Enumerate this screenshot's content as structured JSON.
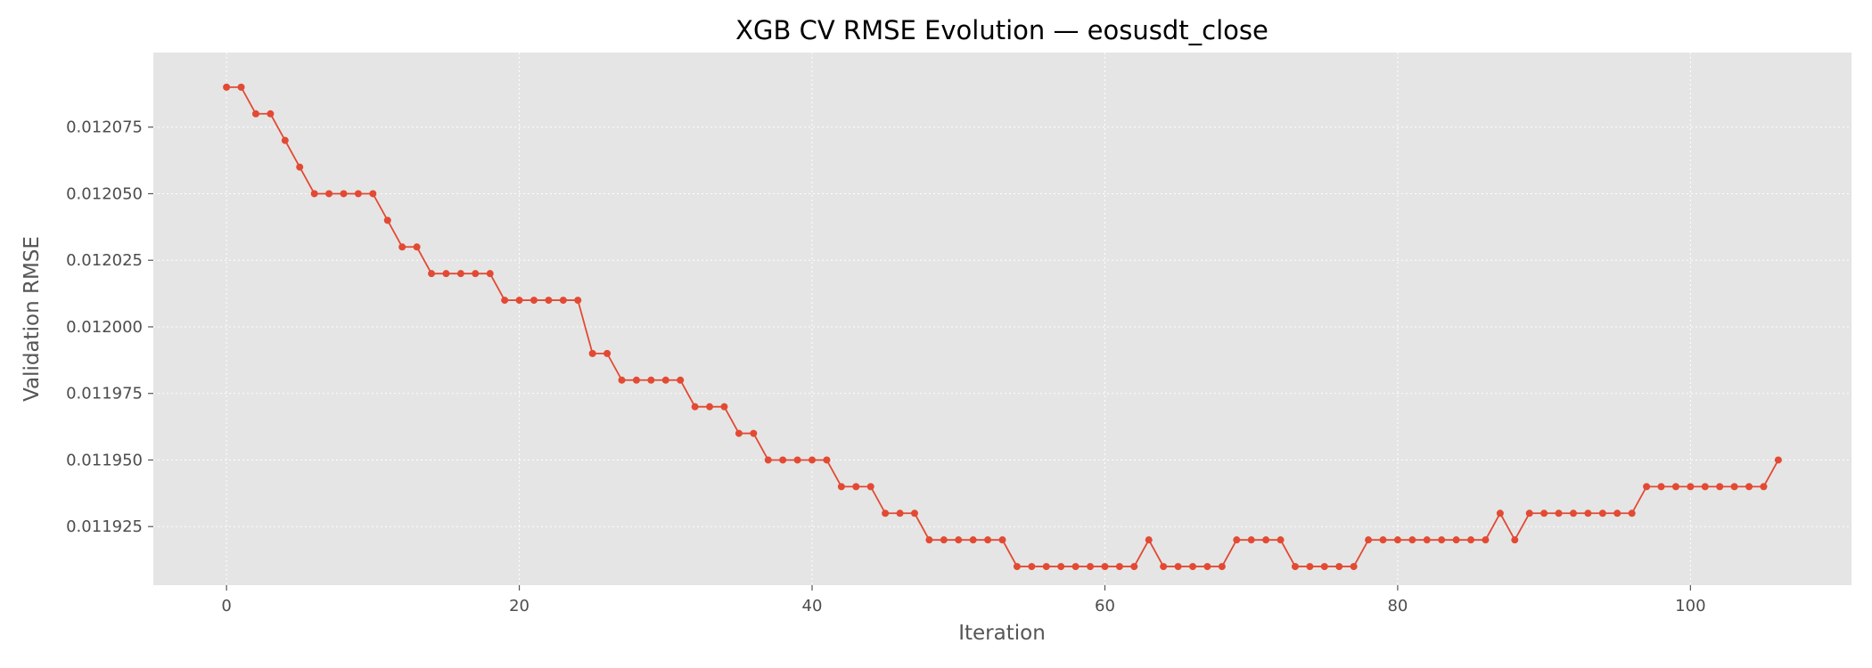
{
  "chart_data": {
    "type": "line",
    "title": "XGB CV RMSE Evolution — eosusdt_close",
    "xlabel": "Iteration",
    "ylabel": "Validation RMSE",
    "xlim": [
      -5,
      111
    ],
    "ylim": [
      0.011903,
      0.012103
    ],
    "x_ticks": [
      0,
      20,
      40,
      60,
      80,
      100
    ],
    "x_tick_labels": [
      "0",
      "20",
      "40",
      "60",
      "80",
      "100"
    ],
    "y_ticks": [
      0.011925,
      0.01195,
      0.011975,
      0.012,
      0.012025,
      0.01205,
      0.012075
    ],
    "y_tick_labels": [
      "0.011925",
      "0.011950",
      "0.011975",
      "0.012000",
      "0.012025",
      "0.012050",
      "0.012075"
    ],
    "grid": true,
    "colors": {
      "line": "#e24a33",
      "plot_bg": "#e5e5e5",
      "grid": "#ffffff"
    },
    "series": [
      {
        "x": [
          0,
          1,
          2,
          3,
          4,
          5,
          6,
          7,
          8,
          9,
          10,
          11,
          12,
          13,
          14,
          15,
          16,
          17,
          18,
          19,
          20,
          21,
          22,
          23,
          24,
          25,
          26,
          27,
          28,
          29,
          30,
          31,
          32,
          33,
          34,
          35,
          36,
          37,
          38,
          39,
          40,
          41,
          42,
          43,
          44,
          45,
          46,
          47,
          48,
          49,
          50,
          51,
          52,
          53,
          54,
          55,
          56,
          57,
          58,
          59,
          60,
          61,
          62,
          63,
          64,
          65,
          66,
          67,
          68,
          69,
          70,
          71,
          72,
          73,
          74,
          75,
          76,
          77,
          78,
          79,
          80,
          81,
          82,
          83,
          84,
          85,
          86,
          87,
          88,
          89,
          90,
          91,
          92,
          93,
          94,
          95,
          96,
          97,
          98,
          99,
          100,
          101,
          102,
          103,
          104,
          105,
          106
        ],
        "values": [
          0.01209,
          0.01209,
          0.01208,
          0.01208,
          0.01207,
          0.01206,
          0.01205,
          0.01205,
          0.01205,
          0.01205,
          0.01205,
          0.01204,
          0.01203,
          0.01203,
          0.01202,
          0.01202,
          0.01202,
          0.01202,
          0.01202,
          0.01201,
          0.01201,
          0.01201,
          0.01201,
          0.01201,
          0.01201,
          0.01199,
          0.01199,
          0.01198,
          0.01198,
          0.01198,
          0.01198,
          0.01198,
          0.01197,
          0.01197,
          0.01197,
          0.01196,
          0.01196,
          0.01195,
          0.01195,
          0.01195,
          0.01195,
          0.01195,
          0.01194,
          0.01194,
          0.01194,
          0.01193,
          0.01193,
          0.01193,
          0.01192,
          0.01192,
          0.01192,
          0.01192,
          0.01192,
          0.01192,
          0.01191,
          0.01191,
          0.01191,
          0.01191,
          0.01191,
          0.01191,
          0.01191,
          0.01191,
          0.01191,
          0.01192,
          0.01191,
          0.01191,
          0.01191,
          0.01191,
          0.01191,
          0.01192,
          0.01192,
          0.01192,
          0.01192,
          0.01191,
          0.01191,
          0.01191,
          0.01191,
          0.01191,
          0.01192,
          0.01192,
          0.01192,
          0.01192,
          0.01192,
          0.01192,
          0.01192,
          0.01192,
          0.01192,
          0.01193,
          0.01192,
          0.01193,
          0.01193,
          0.01193,
          0.01193,
          0.01193,
          0.01193,
          0.01193,
          0.01193,
          0.01194,
          0.01194,
          0.01194,
          0.01194,
          0.01194,
          0.01194,
          0.01194,
          0.01194,
          0.01194,
          0.01195
        ]
      }
    ]
  }
}
